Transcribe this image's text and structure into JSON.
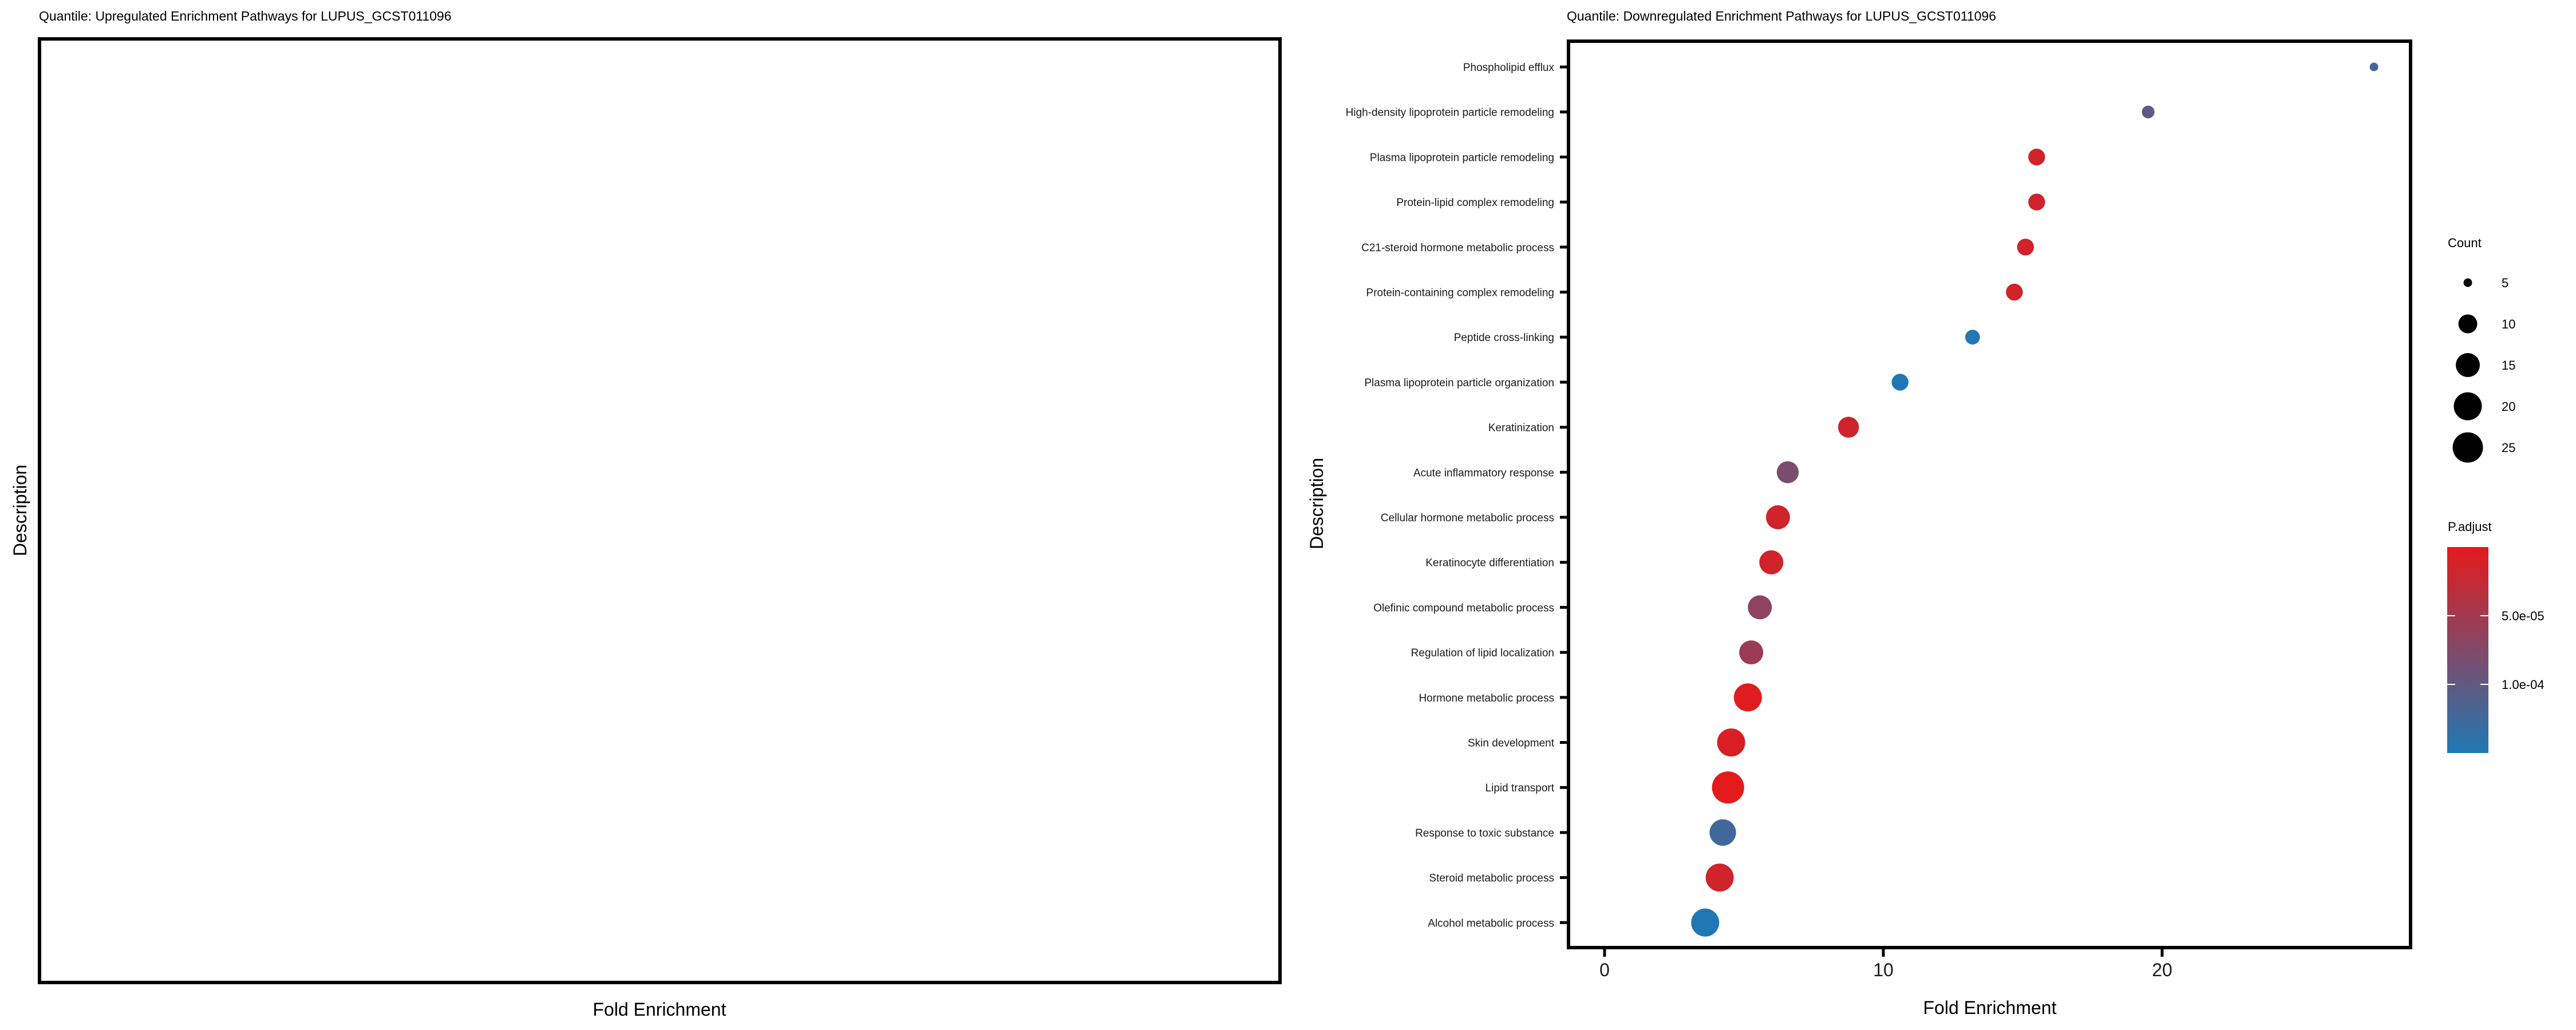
{
  "chart_data": [
    {
      "type": "scatter",
      "title": "Quantile: Upregulated Enrichment Pathways for LUPUS_GCST011096",
      "xlabel": "Fold Enrichment",
      "ylabel": "Description",
      "points": []
    },
    {
      "type": "scatter",
      "title": "Quantile: Downregulated Enrichment Pathways for LUPUS_GCST011096",
      "xlabel": "Fold Enrichment",
      "ylabel": "Description",
      "xlim": [
        -1.3,
        29.4
      ],
      "xticks": [
        0,
        10,
        20
      ],
      "xtick_labels": [
        "0",
        "10",
        "20"
      ],
      "grid": false,
      "points": [
        {
          "description": "Phospholipid efflux",
          "fold_enrichment": 27.6,
          "count": 5,
          "p_adjust": 0.000125
        },
        {
          "description": "High-density lipoprotein particle remodeling",
          "fold_enrichment": 19.5,
          "count": 7,
          "p_adjust": 0.0001
        },
        {
          "description": "Plasma lipoprotein particle remodeling",
          "fold_enrichment": 15.5,
          "count": 9,
          "p_adjust": 1.5e-05
        },
        {
          "description": "Protein-lipid complex remodeling",
          "fold_enrichment": 15.5,
          "count": 9,
          "p_adjust": 1.5e-05
        },
        {
          "description": "C21-steroid hormone metabolic process",
          "fold_enrichment": 15.1,
          "count": 9,
          "p_adjust": 1.5e-05
        },
        {
          "description": "Protein-containing complex remodeling",
          "fold_enrichment": 14.7,
          "count": 9,
          "p_adjust": 1.5e-05
        },
        {
          "description": "Peptide cross-linking",
          "fold_enrichment": 13.2,
          "count": 8,
          "p_adjust": 0.000148
        },
        {
          "description": "Plasma lipoprotein particle organization",
          "fold_enrichment": 10.6,
          "count": 9,
          "p_adjust": 0.00015
        },
        {
          "description": "Keratinization",
          "fold_enrichment": 8.75,
          "count": 12,
          "p_adjust": 1.6e-05
        },
        {
          "description": "Acute inflammatory response",
          "fold_enrichment": 6.57,
          "count": 13,
          "p_adjust": 8e-05
        },
        {
          "description": "Cellular hormone metabolic process",
          "fold_enrichment": 6.22,
          "count": 15,
          "p_adjust": 1.5e-05
        },
        {
          "description": "Keratinocyte differentiation",
          "fold_enrichment": 5.98,
          "count": 15,
          "p_adjust": 1.5e-05
        },
        {
          "description": "Olefinic compound metabolic process",
          "fold_enrichment": 5.57,
          "count": 15,
          "p_adjust": 6.5e-05
        },
        {
          "description": "Regulation of lipid localization",
          "fold_enrichment": 5.26,
          "count": 15,
          "p_adjust": 5.5e-05
        },
        {
          "description": "Hormone metabolic process",
          "fold_enrichment": 5.14,
          "count": 20,
          "p_adjust": 3e-06
        },
        {
          "description": "Skin development",
          "fold_enrichment": 4.54,
          "count": 20,
          "p_adjust": 8e-06
        },
        {
          "description": "Lipid transport",
          "fold_enrichment": 4.43,
          "count": 29,
          "p_adjust": 1e-06
        },
        {
          "description": "Response to toxic substance",
          "fold_enrichment": 4.24,
          "count": 18,
          "p_adjust": 0.000125
        },
        {
          "description": "Steroid metabolic process",
          "fold_enrichment": 4.13,
          "count": 20,
          "p_adjust": 1.6e-05
        },
        {
          "description": "Alcohol metabolic process",
          "fold_enrichment": 3.61,
          "count": 20,
          "p_adjust": 0.00015
        }
      ],
      "legend": {
        "size_title": "Count",
        "size_values": [
          5,
          10,
          15,
          20,
          25
        ],
        "size_labels": [
          "5",
          "10",
          "15",
          "20",
          "25"
        ],
        "color_title": "P.adjust",
        "color_range": [
          0,
          0.00015
        ],
        "color_low": "#e41a1c",
        "color_high": "#1f78b4",
        "color_ticks": [
          5e-05,
          0.0001
        ],
        "color_tick_labels": [
          "5.0e-05",
          "1.0e-04"
        ],
        "placement": "right"
      }
    }
  ]
}
